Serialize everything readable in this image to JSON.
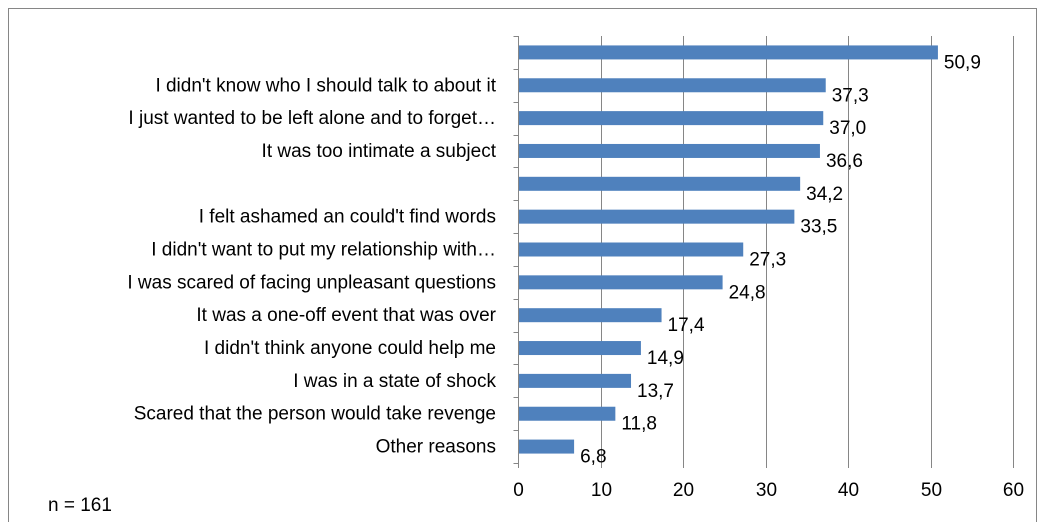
{
  "chart_data": {
    "type": "bar",
    "orientation": "horizontal",
    "categories": [
      "",
      "I didn't know who I should talk to about it",
      "I just wanted to be left alone and to forget…",
      "It was too intimate a subject",
      "",
      "I felt ashamed an could't find words",
      "I didn't want to put my relationship with…",
      "I was scared of facing unpleasant questions",
      "It was a one-off event that was over",
      "I didn't think anyone could help me",
      "I was in a state of shock",
      "Scared that the person would take revenge",
      "Other reasons"
    ],
    "values": [
      50.9,
      37.3,
      37.0,
      36.6,
      34.2,
      33.5,
      27.3,
      24.8,
      17.4,
      14.9,
      13.7,
      11.8,
      6.8
    ],
    "value_labels": [
      "50,9",
      "37,3",
      "37,0",
      "36,6",
      "34,2",
      "33,5",
      "27,3",
      "24,8",
      "17,4",
      "14,9",
      "13,7",
      "11,8",
      "6,8"
    ],
    "xlim": [
      0,
      60
    ],
    "xticks": [
      "0",
      "10",
      "20",
      "30",
      "40",
      "50",
      "60"
    ],
    "grid": true,
    "bar_color": "#4F81BD",
    "grid_color": "#868686",
    "note": "n = 161"
  }
}
